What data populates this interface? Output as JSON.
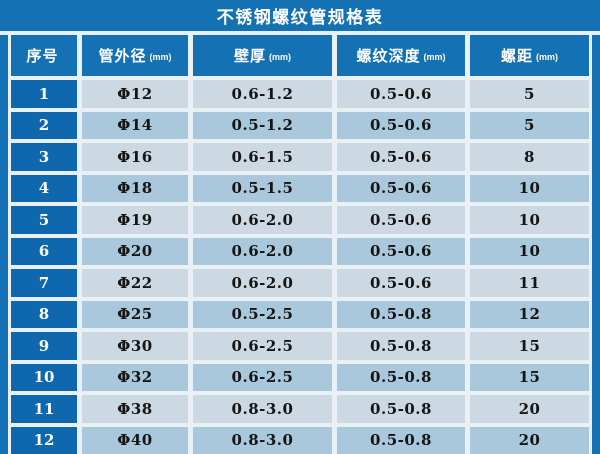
{
  "chart_data": {
    "type": "table",
    "title": "不锈钢螺纹管规格表",
    "columns": [
      {
        "label": "序号",
        "unit": ""
      },
      {
        "label": "管外径",
        "unit": "(mm)"
      },
      {
        "label": "壁厚",
        "unit": "(mm)"
      },
      {
        "label": "螺纹深度",
        "unit": "(mm)"
      },
      {
        "label": "螺距",
        "unit": "(mm)"
      }
    ],
    "column_keys": [
      "serial_no",
      "outer_diameter_mm",
      "wall_thickness_mm",
      "thread_depth_mm",
      "pitch_mm"
    ],
    "rows": [
      [
        "1",
        "Φ12",
        "0.6-1.2",
        "0.5-0.6",
        "5"
      ],
      [
        "2",
        "Φ14",
        "0.5-1.2",
        "0.5-0.6",
        "5"
      ],
      [
        "3",
        "Φ16",
        "0.6-1.5",
        "0.5-0.6",
        "8"
      ],
      [
        "4",
        "Φ18",
        "0.5-1.5",
        "0.5-0.6",
        "10"
      ],
      [
        "5",
        "Φ19",
        "0.6-2.0",
        "0.5-0.6",
        "10"
      ],
      [
        "6",
        "Φ20",
        "0.6-2.0",
        "0.5-0.6",
        "10"
      ],
      [
        "7",
        "Φ22",
        "0.6-2.0",
        "0.5-0.6",
        "11"
      ],
      [
        "8",
        "Φ25",
        "0.5-2.5",
        "0.5-0.8",
        "12"
      ],
      [
        "9",
        "Φ30",
        "0.6-2.5",
        "0.5-0.8",
        "15"
      ],
      [
        "10",
        "Φ32",
        "0.6-2.5",
        "0.5-0.8",
        "15"
      ],
      [
        "11",
        "Φ38",
        "0.8-3.0",
        "0.5-0.8",
        "20"
      ],
      [
        "12",
        "Φ40",
        "0.8-3.0",
        "0.5-0.8",
        "20"
      ]
    ],
    "layout": {
      "grid": "on",
      "row_striping": "alternating light shades",
      "header_position": "top"
    }
  },
  "colors": {
    "page_blue": "#1371b4",
    "serial_blue": "#0f68ad",
    "row_light": "#ccd9e2",
    "row_medium": "#a9c8dc",
    "divider_white": "#e9f1f6",
    "text_dark": "#151515",
    "text_white": "#ffffff"
  }
}
